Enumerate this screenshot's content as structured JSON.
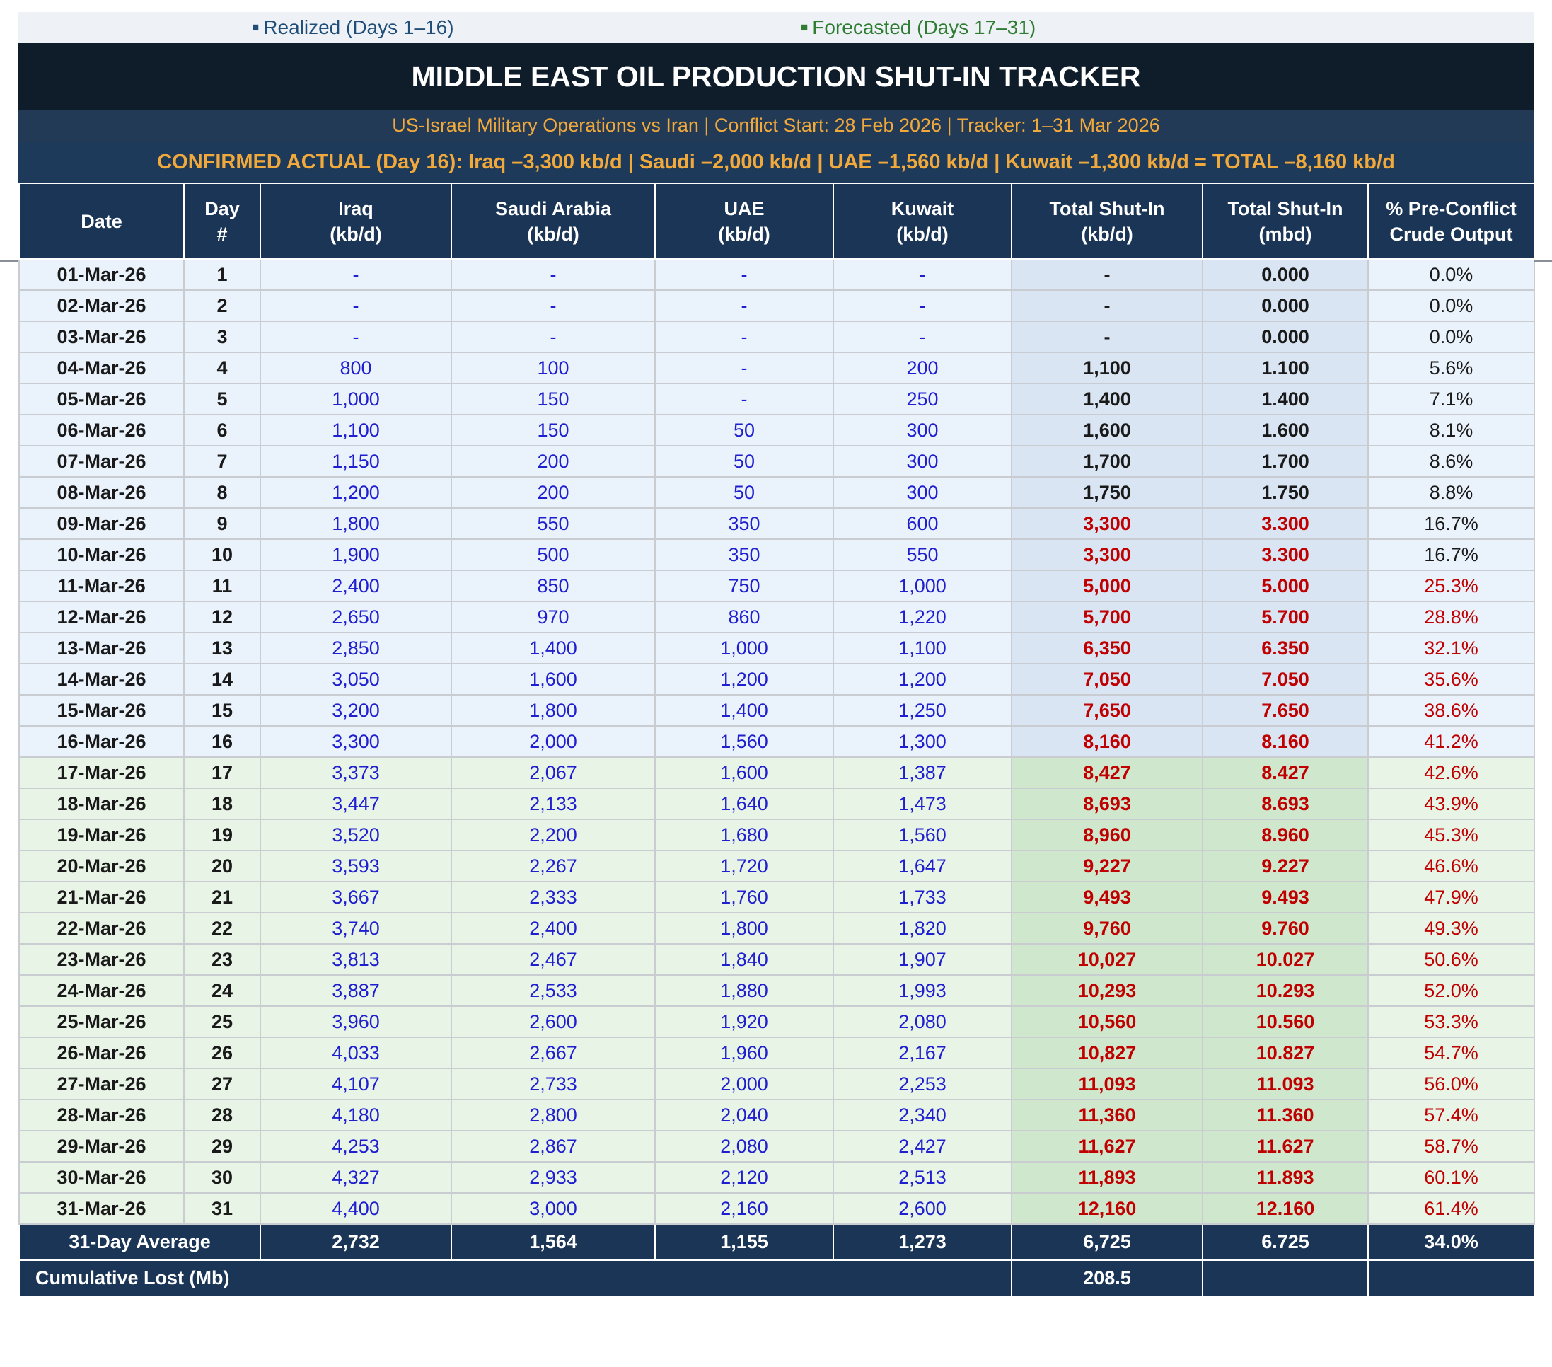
{
  "legend": {
    "realized": "Realized (Days 1–16)",
    "forecasted": "Forecasted (Days 17–31)",
    "marker": "■"
  },
  "title": "MIDDLE EAST OIL PRODUCTION SHUT-IN TRACKER",
  "subtitle": "US-Israel Military Operations vs Iran  |  Conflict Start: 28 Feb 2026  |  Tracker: 1–31 Mar 2026",
  "confirmed": "CONFIRMED ACTUAL (Day 16):  Iraq –3,300 kb/d  |  Saudi –2,000 kb/d  |  UAE –1,560 kb/d  |  Kuwait –1,300 kb/d  =  TOTAL –8,160 kb/d",
  "columns": [
    [
      "Date"
    ],
    [
      "Day",
      "#"
    ],
    [
      "Iraq",
      "(kb/d)"
    ],
    [
      "Saudi Arabia",
      "(kb/d)"
    ],
    [
      "UAE",
      "(kb/d)"
    ],
    [
      "Kuwait",
      "(kb/d)"
    ],
    [
      "Total Shut-In",
      "(kb/d)"
    ],
    [
      "Total Shut-In",
      "(mbd)"
    ],
    [
      "% Pre-Conflict",
      "Crude Output"
    ]
  ],
  "rows": [
    {
      "date": "01-Mar-26",
      "day": "1",
      "iraq": "-",
      "saudi": "-",
      "uae": "-",
      "kuwait": "-",
      "total_kbd": "-",
      "total_mbd": "0.000",
      "pct": "0.0%",
      "phase": "realized"
    },
    {
      "date": "02-Mar-26",
      "day": "2",
      "iraq": "-",
      "saudi": "-",
      "uae": "-",
      "kuwait": "-",
      "total_kbd": "-",
      "total_mbd": "0.000",
      "pct": "0.0%",
      "phase": "realized"
    },
    {
      "date": "03-Mar-26",
      "day": "3",
      "iraq": "-",
      "saudi": "-",
      "uae": "-",
      "kuwait": "-",
      "total_kbd": "-",
      "total_mbd": "0.000",
      "pct": "0.0%",
      "phase": "realized"
    },
    {
      "date": "04-Mar-26",
      "day": "4",
      "iraq": "800",
      "saudi": "100",
      "uae": "-",
      "kuwait": "200",
      "total_kbd": "1,100",
      "total_mbd": "1.100",
      "pct": "5.6%",
      "phase": "realized"
    },
    {
      "date": "05-Mar-26",
      "day": "5",
      "iraq": "1,000",
      "saudi": "150",
      "uae": "-",
      "kuwait": "250",
      "total_kbd": "1,400",
      "total_mbd": "1.400",
      "pct": "7.1%",
      "phase": "realized"
    },
    {
      "date": "06-Mar-26",
      "day": "6",
      "iraq": "1,100",
      "saudi": "150",
      "uae": "50",
      "kuwait": "300",
      "total_kbd": "1,600",
      "total_mbd": "1.600",
      "pct": "8.1%",
      "phase": "realized"
    },
    {
      "date": "07-Mar-26",
      "day": "7",
      "iraq": "1,150",
      "saudi": "200",
      "uae": "50",
      "kuwait": "300",
      "total_kbd": "1,700",
      "total_mbd": "1.700",
      "pct": "8.6%",
      "phase": "realized"
    },
    {
      "date": "08-Mar-26",
      "day": "8",
      "iraq": "1,200",
      "saudi": "200",
      "uae": "50",
      "kuwait": "300",
      "total_kbd": "1,750",
      "total_mbd": "1.750",
      "pct": "8.8%",
      "phase": "realized"
    },
    {
      "date": "09-Mar-26",
      "day": "9",
      "iraq": "1,800",
      "saudi": "550",
      "uae": "350",
      "kuwait": "600",
      "total_kbd": "3,300",
      "total_mbd": "3.300",
      "pct": "16.7%",
      "phase": "realized"
    },
    {
      "date": "10-Mar-26",
      "day": "10",
      "iraq": "1,900",
      "saudi": "500",
      "uae": "350",
      "kuwait": "550",
      "total_kbd": "3,300",
      "total_mbd": "3.300",
      "pct": "16.7%",
      "phase": "realized"
    },
    {
      "date": "11-Mar-26",
      "day": "11",
      "iraq": "2,400",
      "saudi": "850",
      "uae": "750",
      "kuwait": "1,000",
      "total_kbd": "5,000",
      "total_mbd": "5.000",
      "pct": "25.3%",
      "phase": "realized"
    },
    {
      "date": "12-Mar-26",
      "day": "12",
      "iraq": "2,650",
      "saudi": "970",
      "uae": "860",
      "kuwait": "1,220",
      "total_kbd": "5,700",
      "total_mbd": "5.700",
      "pct": "28.8%",
      "phase": "realized"
    },
    {
      "date": "13-Mar-26",
      "day": "13",
      "iraq": "2,850",
      "saudi": "1,400",
      "uae": "1,000",
      "kuwait": "1,100",
      "total_kbd": "6,350",
      "total_mbd": "6.350",
      "pct": "32.1%",
      "phase": "realized"
    },
    {
      "date": "14-Mar-26",
      "day": "14",
      "iraq": "3,050",
      "saudi": "1,600",
      "uae": "1,200",
      "kuwait": "1,200",
      "total_kbd": "7,050",
      "total_mbd": "7.050",
      "pct": "35.6%",
      "phase": "realized"
    },
    {
      "date": "15-Mar-26",
      "day": "15",
      "iraq": "3,200",
      "saudi": "1,800",
      "uae": "1,400",
      "kuwait": "1,250",
      "total_kbd": "7,650",
      "total_mbd": "7.650",
      "pct": "38.6%",
      "phase": "realized"
    },
    {
      "date": "16-Mar-26",
      "day": "16",
      "iraq": "3,300",
      "saudi": "2,000",
      "uae": "1,560",
      "kuwait": "1,300",
      "total_kbd": "8,160",
      "total_mbd": "8.160",
      "pct": "41.2%",
      "phase": "realized"
    },
    {
      "date": "17-Mar-26",
      "day": "17",
      "iraq": "3,373",
      "saudi": "2,067",
      "uae": "1,600",
      "kuwait": "1,387",
      "total_kbd": "8,427",
      "total_mbd": "8.427",
      "pct": "42.6%",
      "phase": "forecast"
    },
    {
      "date": "18-Mar-26",
      "day": "18",
      "iraq": "3,447",
      "saudi": "2,133",
      "uae": "1,640",
      "kuwait": "1,473",
      "total_kbd": "8,693",
      "total_mbd": "8.693",
      "pct": "43.9%",
      "phase": "forecast"
    },
    {
      "date": "19-Mar-26",
      "day": "19",
      "iraq": "3,520",
      "saudi": "2,200",
      "uae": "1,680",
      "kuwait": "1,560",
      "total_kbd": "8,960",
      "total_mbd": "8.960",
      "pct": "45.3%",
      "phase": "forecast"
    },
    {
      "date": "20-Mar-26",
      "day": "20",
      "iraq": "3,593",
      "saudi": "2,267",
      "uae": "1,720",
      "kuwait": "1,647",
      "total_kbd": "9,227",
      "total_mbd": "9.227",
      "pct": "46.6%",
      "phase": "forecast"
    },
    {
      "date": "21-Mar-26",
      "day": "21",
      "iraq": "3,667",
      "saudi": "2,333",
      "uae": "1,760",
      "kuwait": "1,733",
      "total_kbd": "9,493",
      "total_mbd": "9.493",
      "pct": "47.9%",
      "phase": "forecast"
    },
    {
      "date": "22-Mar-26",
      "day": "22",
      "iraq": "3,740",
      "saudi": "2,400",
      "uae": "1,800",
      "kuwait": "1,820",
      "total_kbd": "9,760",
      "total_mbd": "9.760",
      "pct": "49.3%",
      "phase": "forecast"
    },
    {
      "date": "23-Mar-26",
      "day": "23",
      "iraq": "3,813",
      "saudi": "2,467",
      "uae": "1,840",
      "kuwait": "1,907",
      "total_kbd": "10,027",
      "total_mbd": "10.027",
      "pct": "50.6%",
      "phase": "forecast"
    },
    {
      "date": "24-Mar-26",
      "day": "24",
      "iraq": "3,887",
      "saudi": "2,533",
      "uae": "1,880",
      "kuwait": "1,993",
      "total_kbd": "10,293",
      "total_mbd": "10.293",
      "pct": "52.0%",
      "phase": "forecast"
    },
    {
      "date": "25-Mar-26",
      "day": "25",
      "iraq": "3,960",
      "saudi": "2,600",
      "uae": "1,920",
      "kuwait": "2,080",
      "total_kbd": "10,560",
      "total_mbd": "10.560",
      "pct": "53.3%",
      "phase": "forecast"
    },
    {
      "date": "26-Mar-26",
      "day": "26",
      "iraq": "4,033",
      "saudi": "2,667",
      "uae": "1,960",
      "kuwait": "2,167",
      "total_kbd": "10,827",
      "total_mbd": "10.827",
      "pct": "54.7%",
      "phase": "forecast"
    },
    {
      "date": "27-Mar-26",
      "day": "27",
      "iraq": "4,107",
      "saudi": "2,733",
      "uae": "2,000",
      "kuwait": "2,253",
      "total_kbd": "11,093",
      "total_mbd": "11.093",
      "pct": "56.0%",
      "phase": "forecast"
    },
    {
      "date": "28-Mar-26",
      "day": "28",
      "iraq": "4,180",
      "saudi": "2,800",
      "uae": "2,040",
      "kuwait": "2,340",
      "total_kbd": "11,360",
      "total_mbd": "11.360",
      "pct": "57.4%",
      "phase": "forecast"
    },
    {
      "date": "29-Mar-26",
      "day": "29",
      "iraq": "4,253",
      "saudi": "2,867",
      "uae": "2,080",
      "kuwait": "2,427",
      "total_kbd": "11,627",
      "total_mbd": "11.627",
      "pct": "58.7%",
      "phase": "forecast"
    },
    {
      "date": "30-Mar-26",
      "day": "30",
      "iraq": "4,327",
      "saudi": "2,933",
      "uae": "2,120",
      "kuwait": "2,513",
      "total_kbd": "11,893",
      "total_mbd": "11.893",
      "pct": "60.1%",
      "phase": "forecast"
    },
    {
      "date": "31-Mar-26",
      "day": "31",
      "iraq": "4,400",
      "saudi": "3,000",
      "uae": "2,160",
      "kuwait": "2,600",
      "total_kbd": "12,160",
      "total_mbd": "12.160",
      "pct": "61.4%",
      "phase": "forecast"
    }
  ],
  "average": {
    "label": "31-Day Average",
    "iraq": "2,732",
    "saudi": "1,564",
    "uae": "1,155",
    "kuwait": "1,273",
    "total_kbd": "6,725",
    "total_mbd": "6.725",
    "pct": "34.0%"
  },
  "cumulative": {
    "label": "Cumulative Lost (Mb)",
    "value": "208.5"
  },
  "colors": {
    "header_bg": "#1b3557",
    "title_bg": "#0f1c2a",
    "accent_orange": "#f2a93b",
    "realized_row": "#eaf3fc",
    "forecast_row": "#e8f4e6",
    "value_blue": "#1f1fd0",
    "alert_red": "#c00000"
  }
}
